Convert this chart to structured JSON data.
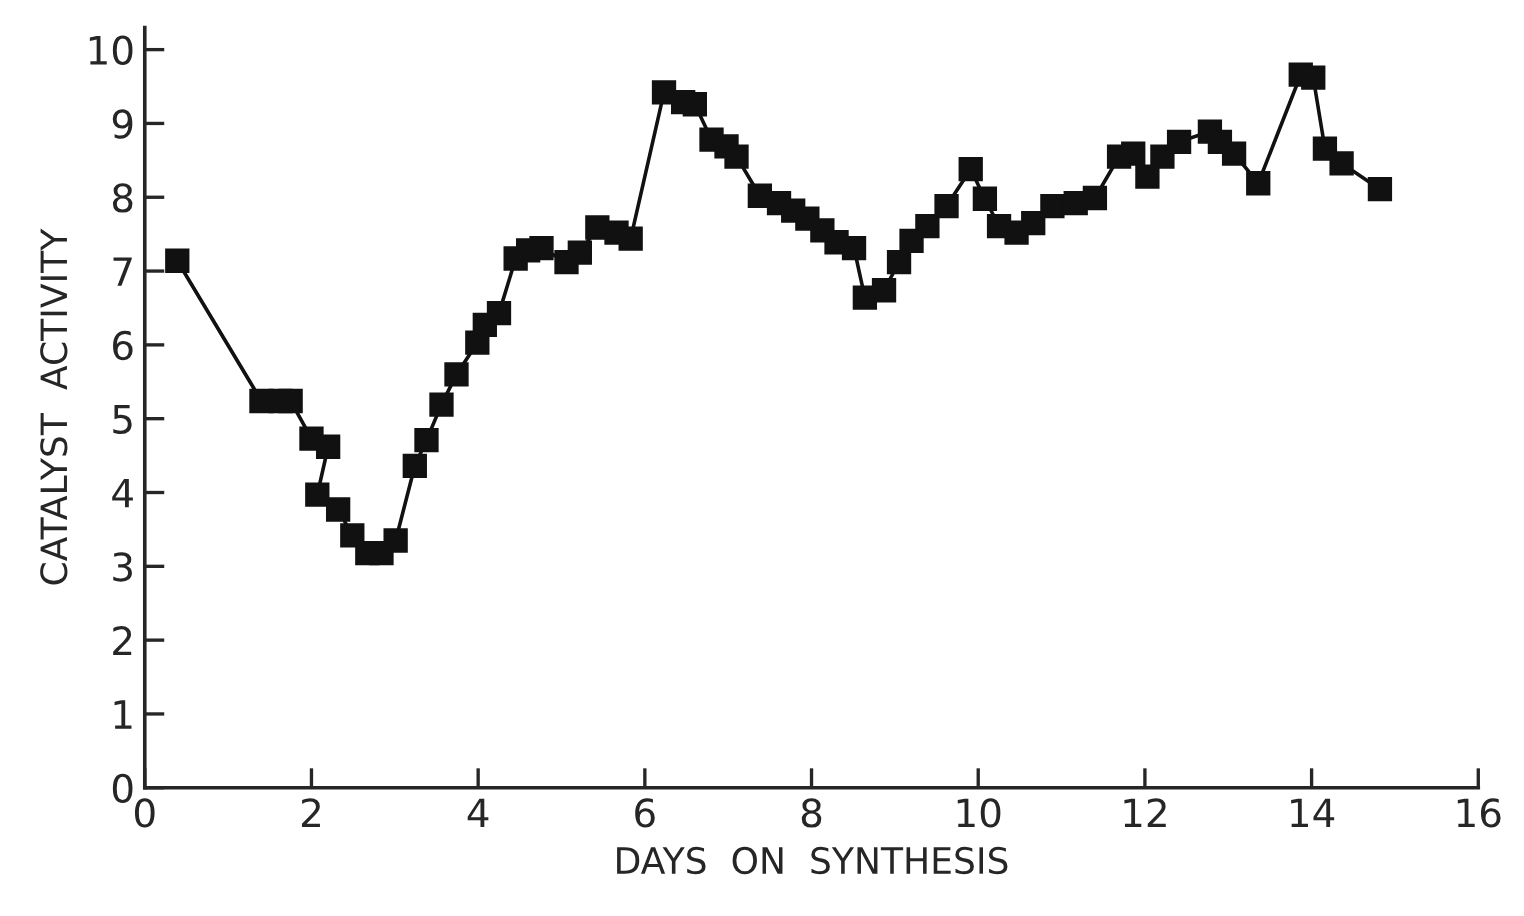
{
  "chart_data": {
    "type": "line",
    "xlabel": "DAYS  ON  SYNTHESIS",
    "ylabel": "CATALYST  ACTIVITY",
    "marker": "square",
    "line_style": "solid",
    "grid": false,
    "xlim": [
      0,
      16
    ],
    "ylim": [
      0,
      10.3
    ],
    "xticks": [
      0,
      2,
      4,
      6,
      8,
      10,
      12,
      14,
      16
    ],
    "yticks": [
      0,
      1,
      2,
      3,
      4,
      5,
      6,
      7,
      8,
      9,
      10
    ],
    "series": [
      {
        "color": "#111111",
        "x": [
          0.39,
          1.4,
          1.63,
          1.75,
          2.0,
          2.2,
          2.07,
          2.32,
          2.49,
          2.67,
          2.84,
          3.01,
          3.24,
          3.38,
          3.56,
          3.74,
          3.99,
          4.08,
          4.25,
          4.45,
          4.6,
          4.76,
          5.06,
          5.22,
          5.43,
          5.66,
          5.83,
          6.23,
          6.46,
          6.6,
          6.8,
          6.98,
          7.1,
          7.38,
          7.61,
          7.78,
          7.95,
          8.13,
          8.3,
          8.51,
          8.64,
          8.87,
          9.05,
          9.2,
          9.39,
          9.62,
          9.91,
          10.08,
          10.25,
          10.46,
          10.66,
          10.89,
          11.17,
          11.4,
          11.69,
          11.86,
          12.03,
          12.21,
          12.41,
          12.78,
          12.9,
          13.07,
          13.36,
          13.87,
          14.02,
          14.16,
          14.36,
          14.82
        ],
        "values": [
          7.14,
          5.24,
          5.24,
          5.24,
          4.73,
          4.62,
          3.97,
          3.77,
          3.42,
          3.18,
          3.18,
          3.35,
          4.36,
          4.71,
          5.19,
          5.6,
          6.03,
          6.27,
          6.43,
          7.17,
          7.28,
          7.31,
          7.12,
          7.25,
          7.59,
          7.52,
          7.44,
          9.42,
          9.29,
          9.26,
          8.78,
          8.69,
          8.55,
          8.02,
          7.92,
          7.82,
          7.71,
          7.55,
          7.39,
          7.31,
          6.64,
          6.74,
          7.12,
          7.41,
          7.61,
          7.88,
          8.38,
          7.98,
          7.61,
          7.52,
          7.65,
          7.88,
          7.92,
          7.99,
          8.55,
          8.59,
          8.28,
          8.55,
          8.75,
          8.89,
          8.75,
          8.59,
          8.19,
          9.66,
          9.62,
          8.66,
          8.46,
          8.11
        ]
      }
    ]
  }
}
